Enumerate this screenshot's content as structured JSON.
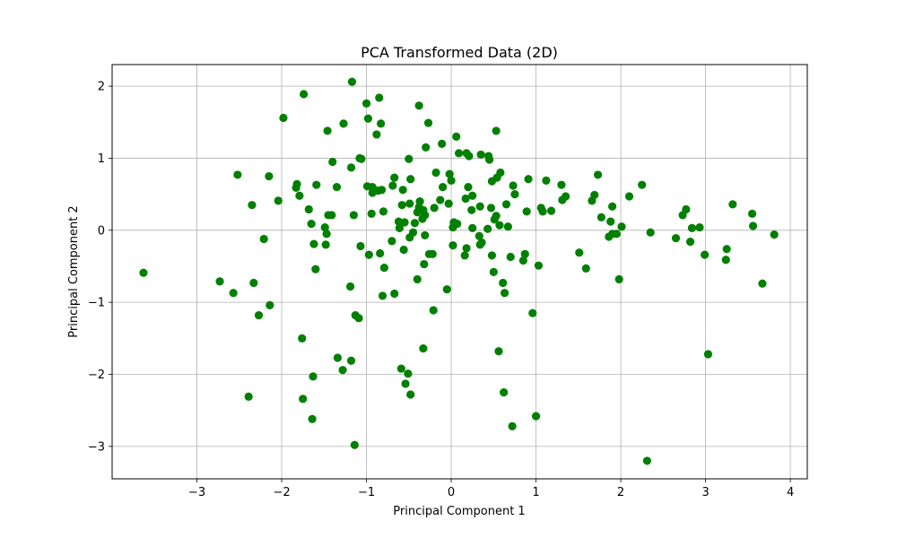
{
  "chart_data": {
    "type": "scatter",
    "title": "PCA Transformed Data (2D)",
    "xlabel": "Principal Component 1",
    "ylabel": "Principal Component 2",
    "xlim": [
      -4.0,
      4.2
    ],
    "ylim": [
      -3.45,
      2.3
    ],
    "x_ticks": [
      -3,
      -2,
      -1,
      0,
      1,
      2,
      3,
      4
    ],
    "y_ticks": [
      -3,
      -2,
      -1,
      0,
      1,
      2
    ],
    "grid": true,
    "color": "#008000",
    "series": [
      {
        "points": [
          [
            -3.63,
            -0.59
          ],
          [
            -2.73,
            -0.71
          ],
          [
            -2.57,
            -0.87
          ],
          [
            -2.52,
            0.77
          ],
          [
            -2.39,
            -2.31
          ],
          [
            -2.35,
            0.35
          ],
          [
            -2.33,
            -0.73
          ],
          [
            -2.27,
            -1.18
          ],
          [
            -2.21,
            -0.12
          ],
          [
            -2.15,
            0.75
          ],
          [
            -2.14,
            -1.04
          ],
          [
            -2.04,
            0.41
          ],
          [
            -1.98,
            1.56
          ],
          [
            -1.83,
            0.59
          ],
          [
            -1.82,
            0.64
          ],
          [
            -1.79,
            0.48
          ],
          [
            -1.76,
            -1.5
          ],
          [
            -1.75,
            -2.34
          ],
          [
            -1.74,
            1.89
          ],
          [
            -1.68,
            0.29
          ],
          [
            -1.65,
            0.09
          ],
          [
            -1.64,
            -2.62
          ],
          [
            -1.63,
            -2.03
          ],
          [
            -1.62,
            -0.19
          ],
          [
            -1.6,
            -0.54
          ],
          [
            -1.59,
            0.63
          ],
          [
            -1.49,
            0.04
          ],
          [
            -1.48,
            -0.2
          ],
          [
            -1.47,
            -0.05
          ],
          [
            -1.46,
            1.38
          ],
          [
            -1.45,
            0.21
          ],
          [
            -1.41,
            0.21
          ],
          [
            -1.4,
            0.95
          ],
          [
            -1.35,
            0.6
          ],
          [
            -1.34,
            -1.77
          ],
          [
            -1.28,
            -1.94
          ],
          [
            -1.27,
            1.48
          ],
          [
            -1.19,
            -0.78
          ],
          [
            -1.18,
            -1.81
          ],
          [
            -1.18,
            0.87
          ],
          [
            -1.17,
            2.06
          ],
          [
            -1.15,
            0.21
          ],
          [
            -1.14,
            -2.98
          ],
          [
            -1.13,
            -1.18
          ],
          [
            -1.09,
            -1.22
          ],
          [
            -1.08,
            1.0
          ],
          [
            -1.07,
            -0.22
          ],
          [
            -1.06,
            0.99
          ],
          [
            -1.0,
            1.76
          ],
          [
            -0.99,
            0.61
          ],
          [
            -0.98,
            1.55
          ],
          [
            -0.97,
            -0.34
          ],
          [
            -0.94,
            0.23
          ],
          [
            -0.93,
            0.6
          ],
          [
            -0.93,
            0.52
          ],
          [
            -0.9,
            0.55
          ],
          [
            -0.88,
            1.33
          ],
          [
            -0.86,
            0.55
          ],
          [
            -0.85,
            1.84
          ],
          [
            -0.84,
            -0.32
          ],
          [
            -0.83,
            1.48
          ],
          [
            -0.82,
            0.56
          ],
          [
            -0.81,
            -0.91
          ],
          [
            -0.8,
            0.26
          ],
          [
            -0.79,
            -0.52
          ],
          [
            -0.7,
            -0.15
          ],
          [
            -0.69,
            0.62
          ],
          [
            -0.67,
            -0.88
          ],
          [
            -0.67,
            0.73
          ],
          [
            -0.62,
            0.12
          ],
          [
            -0.61,
            0.03
          ],
          [
            -0.59,
            -1.92
          ],
          [
            -0.58,
            0.35
          ],
          [
            -0.57,
            0.56
          ],
          [
            -0.56,
            -0.27
          ],
          [
            -0.55,
            0.11
          ],
          [
            -0.54,
            -2.13
          ],
          [
            -0.51,
            -1.99
          ],
          [
            -0.5,
            0.99
          ],
          [
            -0.49,
            -0.1
          ],
          [
            -0.49,
            0.37
          ],
          [
            -0.48,
            0.71
          ],
          [
            -0.48,
            -2.28
          ],
          [
            -0.45,
            -0.03
          ],
          [
            -0.43,
            0.1
          ],
          [
            -0.4,
            0.25
          ],
          [
            -0.4,
            -0.68
          ],
          [
            -0.38,
            1.73
          ],
          [
            -0.38,
            0.32
          ],
          [
            -0.37,
            0.4
          ],
          [
            -0.34,
            0.16
          ],
          [
            -0.33,
            -1.64
          ],
          [
            -0.33,
            0.28
          ],
          [
            -0.32,
            -0.47
          ],
          [
            -0.31,
            0.21
          ],
          [
            -0.31,
            -0.07
          ],
          [
            -0.3,
            1.15
          ],
          [
            -0.27,
            1.49
          ],
          [
            -0.26,
            -0.33
          ],
          [
            -0.22,
            -0.33
          ],
          [
            -0.21,
            -1.11
          ],
          [
            -0.2,
            0.31
          ],
          [
            -0.18,
            0.8
          ],
          [
            -0.13,
            0.42
          ],
          [
            -0.11,
            1.2
          ],
          [
            -0.1,
            0.6
          ],
          [
            -0.05,
            -0.82
          ],
          [
            -0.03,
            0.37
          ],
          [
            -0.02,
            0.78
          ],
          [
            0.0,
            0.69
          ],
          [
            0.02,
            0.04
          ],
          [
            0.02,
            -0.21
          ],
          [
            0.03,
            0.11
          ],
          [
            0.06,
            1.3
          ],
          [
            0.07,
            0.09
          ],
          [
            0.09,
            1.07
          ],
          [
            0.16,
            -0.35
          ],
          [
            0.17,
            0.44
          ],
          [
            0.18,
            1.07
          ],
          [
            0.18,
            -0.25
          ],
          [
            0.2,
            0.6
          ],
          [
            0.21,
            1.03
          ],
          [
            0.24,
            0.28
          ],
          [
            0.25,
            0.48
          ],
          [
            0.25,
            0.03
          ],
          [
            0.33,
            -0.08
          ],
          [
            0.34,
            -0.2
          ],
          [
            0.34,
            0.33
          ],
          [
            0.35,
            1.05
          ],
          [
            0.36,
            -0.17
          ],
          [
            0.43,
            0.02
          ],
          [
            0.44,
            1.03
          ],
          [
            0.45,
            0.98
          ],
          [
            0.47,
            0.31
          ],
          [
            0.48,
            0.68
          ],
          [
            0.48,
            -0.35
          ],
          [
            0.5,
            -0.58
          ],
          [
            0.51,
            0.15
          ],
          [
            0.53,
            0.2
          ],
          [
            0.53,
            1.38
          ],
          [
            0.54,
            0.73
          ],
          [
            0.56,
            -1.68
          ],
          [
            0.57,
            0.07
          ],
          [
            0.58,
            0.8
          ],
          [
            0.61,
            -0.73
          ],
          [
            0.62,
            -2.25
          ],
          [
            0.63,
            -0.87
          ],
          [
            0.65,
            0.36
          ],
          [
            0.67,
            0.05
          ],
          [
            0.7,
            -0.37
          ],
          [
            0.72,
            -2.72
          ],
          [
            0.73,
            0.62
          ],
          [
            0.75,
            0.5
          ],
          [
            0.85,
            -0.42
          ],
          [
            0.87,
            -0.33
          ],
          [
            0.89,
            0.26
          ],
          [
            0.91,
            0.71
          ],
          [
            0.96,
            -1.15
          ],
          [
            1.0,
            -2.58
          ],
          [
            1.03,
            -0.49
          ],
          [
            1.06,
            0.31
          ],
          [
            1.08,
            0.26
          ],
          [
            1.12,
            0.69
          ],
          [
            1.18,
            0.27
          ],
          [
            1.3,
            0.63
          ],
          [
            1.31,
            0.42
          ],
          [
            1.35,
            0.47
          ],
          [
            1.51,
            -0.31
          ],
          [
            1.59,
            -0.53
          ],
          [
            1.66,
            0.41
          ],
          [
            1.69,
            0.49
          ],
          [
            1.73,
            0.77
          ],
          [
            1.77,
            0.18
          ],
          [
            1.86,
            -0.09
          ],
          [
            1.88,
            0.12
          ],
          [
            1.9,
            -0.05
          ],
          [
            1.9,
            0.33
          ],
          [
            1.95,
            -0.05
          ],
          [
            1.98,
            -0.68
          ],
          [
            2.01,
            0.05
          ],
          [
            2.1,
            0.47
          ],
          [
            2.25,
            0.63
          ],
          [
            2.31,
            -3.2
          ],
          [
            2.35,
            -0.03
          ],
          [
            2.65,
            -0.11
          ],
          [
            2.73,
            0.21
          ],
          [
            2.77,
            0.29
          ],
          [
            2.82,
            -0.16
          ],
          [
            2.84,
            0.03
          ],
          [
            2.93,
            0.04
          ],
          [
            2.99,
            -0.34
          ],
          [
            3.03,
            -1.72
          ],
          [
            3.24,
            -0.41
          ],
          [
            3.25,
            -0.26
          ],
          [
            3.32,
            0.36
          ],
          [
            3.55,
            0.23
          ],
          [
            3.56,
            0.06
          ],
          [
            3.67,
            -0.74
          ],
          [
            3.81,
            -0.06
          ]
        ]
      }
    ]
  }
}
